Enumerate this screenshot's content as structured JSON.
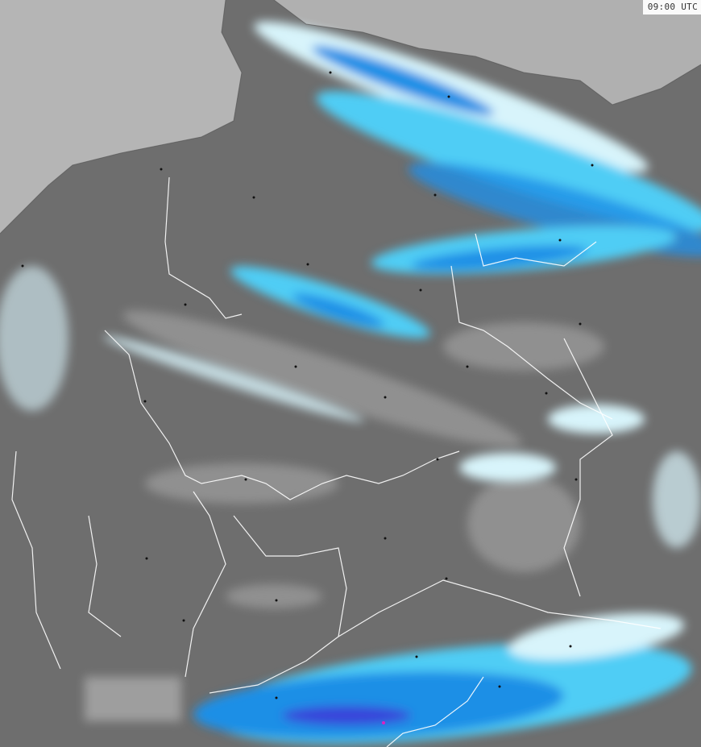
{
  "map": {
    "timestamp": "09:00 UTC",
    "colors": {
      "land": "#6e6e6e",
      "sea": "#b5b5b5",
      "cloud_light": "#a0a0a0",
      "precip_very_light": "#d8f4fb",
      "precip_light": "#4fcdf5",
      "precip_moderate": "#1e8fe6",
      "precip_heavy": "#3a3cd8",
      "precip_extreme": "#e020c0",
      "borders": "#ffffff"
    }
  }
}
